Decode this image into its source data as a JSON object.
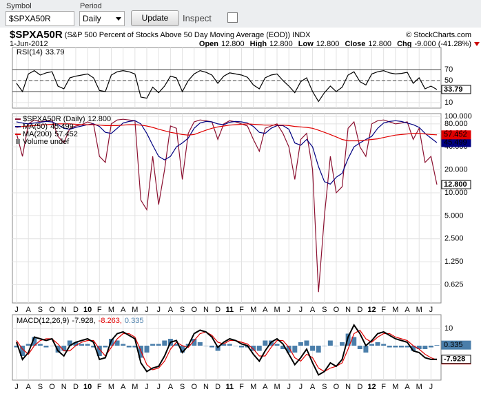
{
  "controls": {
    "symbol_label": "Symbol",
    "symbol": "$SPXA50R",
    "period_label": "Period",
    "period": "Daily",
    "update": "Update",
    "inspect": "Inspect"
  },
  "header": {
    "title": "$SPXA50R",
    "subtitle": "(S&P 500 Percent of Stocks Above 50 Day Moving Average (EOD))",
    "exchange": "INDX",
    "date": "1-Jun-2012",
    "source": "© StockCharts.com",
    "ohlc": [
      {
        "label": "Open",
        "value": "12.800"
      },
      {
        "label": "High",
        "value": "12.800"
      },
      {
        "label": "Low",
        "value": "12.800"
      },
      {
        "label": "Close",
        "value": "12.800"
      },
      {
        "label": "Chg",
        "value": "-9.000 (-41.28%)"
      }
    ]
  },
  "chart_data": [
    {
      "type": "line",
      "ylim": [
        0,
        110
      ],
      "yticks": [
        10,
        30,
        50,
        70
      ],
      "reference_lines": [
        {
          "value": 70,
          "style": "solid"
        },
        {
          "value": 50,
          "style": "dashed"
        },
        {
          "value": 30,
          "style": "solid"
        }
      ],
      "series": [
        {
          "name": "RSI(14)",
          "color": "#000000",
          "legend_label": "33.79",
          "last_value_label": "33.79",
          "values": [
            45,
            30,
            62,
            68,
            60,
            64,
            66,
            40,
            35,
            55,
            58,
            60,
            62,
            55,
            32,
            30,
            60,
            66,
            68,
            66,
            62,
            20,
            18,
            38,
            28,
            40,
            58,
            55,
            30,
            50,
            62,
            68,
            65,
            60,
            45,
            58,
            64,
            62,
            60,
            56,
            42,
            35,
            55,
            60,
            62,
            50,
            40,
            28,
            48,
            55,
            30,
            12,
            28,
            40,
            30,
            38,
            60,
            66,
            48,
            42,
            62,
            66,
            68,
            64,
            62,
            63,
            65,
            45,
            55,
            35,
            40,
            33.79
          ]
        }
      ]
    },
    {
      "type": "line",
      "log_scale": true,
      "ylim": [
        0.36,
        109
      ],
      "yticks": [
        {
          "value": 100,
          "label": "100.000"
        },
        {
          "value": 80,
          "label": "80.000"
        },
        {
          "value": 60,
          "label": "60.000"
        },
        {
          "value": 40,
          "label": "40.000"
        },
        {
          "value": 20,
          "label": "20.000"
        },
        {
          "value": 10,
          "label": "10.000"
        },
        {
          "value": 5,
          "label": "5.000"
        },
        {
          "value": 2.5,
          "label": "2.500"
        },
        {
          "value": 1.25,
          "label": "1.250"
        },
        {
          "value": 0.625,
          "label": "0.625"
        }
      ],
      "note": "Volume undef",
      "categories": [
        "J",
        null,
        "A",
        null,
        "S",
        null,
        "O",
        null,
        "N",
        null,
        "D",
        null,
        "10",
        null,
        "F",
        null,
        "M",
        null,
        "A",
        null,
        "M",
        null,
        "J",
        null,
        "J",
        null,
        "A",
        null,
        "S",
        null,
        "O",
        null,
        "N",
        null,
        "D",
        null,
        "11",
        null,
        "F",
        null,
        "M",
        null,
        "A",
        null,
        "M",
        null,
        "J",
        null,
        "J",
        null,
        "A",
        null,
        "S",
        null,
        "O",
        null,
        "N",
        null,
        "D",
        null,
        "12",
        null,
        "F",
        null,
        "M",
        null,
        "A",
        null,
        "M",
        null,
        "J",
        null
      ],
      "series": [
        {
          "name": "$SPXA50R (Daily)",
          "color": "#8b1030",
          "legend_label": "12.800",
          "last_value_label": "12.800",
          "values": [
            60,
            30,
            80,
            90,
            85,
            88,
            90,
            55,
            45,
            70,
            75,
            78,
            85,
            80,
            30,
            25,
            80,
            90,
            92,
            90,
            88,
            8,
            6,
            30,
            7,
            20,
            75,
            70,
            15,
            60,
            85,
            90,
            88,
            85,
            50,
            80,
            88,
            85,
            80,
            75,
            50,
            35,
            70,
            75,
            80,
            60,
            40,
            15,
            50,
            60,
            20,
            0.5,
            5,
            30,
            10,
            12,
            70,
            85,
            40,
            30,
            80,
            88,
            90,
            85,
            80,
            82,
            85,
            50,
            70,
            25,
            30,
            12.8
          ]
        },
        {
          "name": "MA(50)",
          "color": "#000080",
          "legend_label": "45.499",
          "last_value_label": "45.499",
          "values": [
            85,
            82,
            80,
            82,
            84,
            86,
            85,
            78,
            70,
            68,
            72,
            75,
            78,
            80,
            74,
            62,
            60,
            70,
            82,
            86,
            88,
            80,
            60,
            42,
            30,
            27,
            30,
            40,
            45,
            52,
            70,
            82,
            86,
            85,
            80,
            78,
            84,
            86,
            85,
            82,
            74,
            62,
            60,
            70,
            76,
            76,
            68,
            45,
            42,
            50,
            40,
            22,
            14,
            13,
            16,
            18,
            28,
            40,
            45,
            50,
            55,
            70,
            82,
            86,
            88,
            86,
            82,
            78,
            72,
            60,
            52,
            45.499
          ]
        },
        {
          "name": "MA(200)",
          "color": "#e00000",
          "legend_label": "57.452",
          "last_value_label": "57.452",
          "values": [
            72,
            74,
            75,
            76,
            77,
            78,
            79,
            80,
            80,
            80,
            79,
            78,
            78,
            78,
            77,
            76,
            76,
            76,
            77,
            78,
            78,
            77,
            75,
            72,
            68,
            65,
            62,
            60,
            58,
            57,
            58,
            62,
            66,
            70,
            73,
            75,
            77,
            78,
            79,
            80,
            79,
            78,
            77,
            77,
            77,
            77,
            76,
            74,
            73,
            72,
            70,
            66,
            62,
            58,
            54,
            50,
            48,
            48,
            48,
            49,
            50,
            51,
            53,
            55,
            57,
            58,
            59,
            60,
            60,
            59,
            58,
            57.452
          ]
        }
      ]
    },
    {
      "type": "line",
      "title": "MACD(12,26,9)",
      "ylim": [
        -20,
        18
      ],
      "yticks": [
        10
      ],
      "categories": [
        "J",
        null,
        "A",
        null,
        "S",
        null,
        "O",
        null,
        "N",
        null,
        "D",
        null,
        "10",
        null,
        "F",
        null,
        "M",
        null,
        "A",
        null,
        "M",
        null,
        "J",
        null,
        "J",
        null,
        "A",
        null,
        "S",
        null,
        "O",
        null,
        "N",
        null,
        "D",
        null,
        "11",
        null,
        "F",
        null,
        "M",
        null,
        "A",
        null,
        "M",
        null,
        "J",
        null,
        "J",
        null,
        "A",
        null,
        "S",
        null,
        "O",
        null,
        "N",
        null,
        "D",
        null,
        "12",
        null,
        "F",
        null,
        "M",
        null,
        "A",
        null,
        "M",
        null,
        "J",
        null
      ],
      "series": [
        {
          "name": "MACD",
          "type": "bar",
          "color": "#4a7eaa",
          "legend_label": "0.335",
          "last_value_label": "0.335",
          "values": [
            -1,
            -6,
            1,
            5,
            1,
            -1,
            0,
            -4,
            -3,
            3,
            2,
            1,
            1,
            -1,
            -6,
            -1,
            4,
            3,
            1,
            -1,
            -1,
            -7,
            -4,
            1,
            1,
            3,
            4,
            1,
            -4,
            1,
            4,
            2,
            0,
            -1,
            -3,
            1,
            1,
            0,
            -1,
            -1,
            -3,
            -3,
            3,
            3,
            1,
            -2,
            -4,
            -4,
            2,
            3,
            -3,
            -4,
            0,
            3,
            0,
            2,
            7,
            5,
            -2,
            -4,
            1,
            2,
            1,
            -1,
            -1,
            -1,
            -1,
            -3,
            -2,
            -2,
            -1,
            0.335
          ]
        },
        {
          "name": "Signal",
          "color": "#e00000",
          "legend_label": "-8.263,",
          "last_value_label": "-8.263",
          "values": [
            3,
            -2,
            -5,
            0,
            3,
            4,
            4,
            1,
            -3,
            -3,
            0,
            2,
            3,
            3,
            -2,
            -6,
            -1,
            4,
            7,
            7,
            5,
            -3,
            -11,
            -14,
            -13,
            -9,
            -2,
            2,
            0,
            -1,
            3,
            7,
            8,
            6,
            2,
            1,
            3,
            3,
            2,
            1,
            -2,
            -6,
            -6,
            -1,
            3,
            3,
            -1,
            -7,
            -9,
            -5,
            -7,
            -13,
            -15,
            -13,
            -12,
            -10,
            -2,
            7,
            9,
            4,
            2,
            5,
            7,
            7,
            5,
            4,
            3,
            0,
            -2,
            -5,
            -7,
            -8.263
          ]
        },
        {
          "name": "MACD line",
          "color": "#000000",
          "legend_label": "-7.928,",
          "last_value_label": "-7.928",
          "values": [
            2,
            -8,
            -4,
            5,
            4,
            3,
            4,
            -3,
            -6,
            0,
            2,
            3,
            4,
            2,
            -8,
            -7,
            3,
            7,
            8,
            6,
            4,
            -10,
            -15,
            -13,
            -12,
            -6,
            2,
            3,
            -4,
            0,
            7,
            9,
            8,
            5,
            -1,
            2,
            4,
            3,
            1,
            0,
            -5,
            -9,
            -3,
            2,
            4,
            1,
            -5,
            -11,
            -7,
            -2,
            -10,
            -17,
            -15,
            -10,
            -12,
            -8,
            5,
            12,
            7,
            0,
            3,
            7,
            8,
            6,
            4,
            3,
            2,
            -3,
            -4,
            -7,
            -8,
            -7.928
          ]
        }
      ]
    }
  ]
}
